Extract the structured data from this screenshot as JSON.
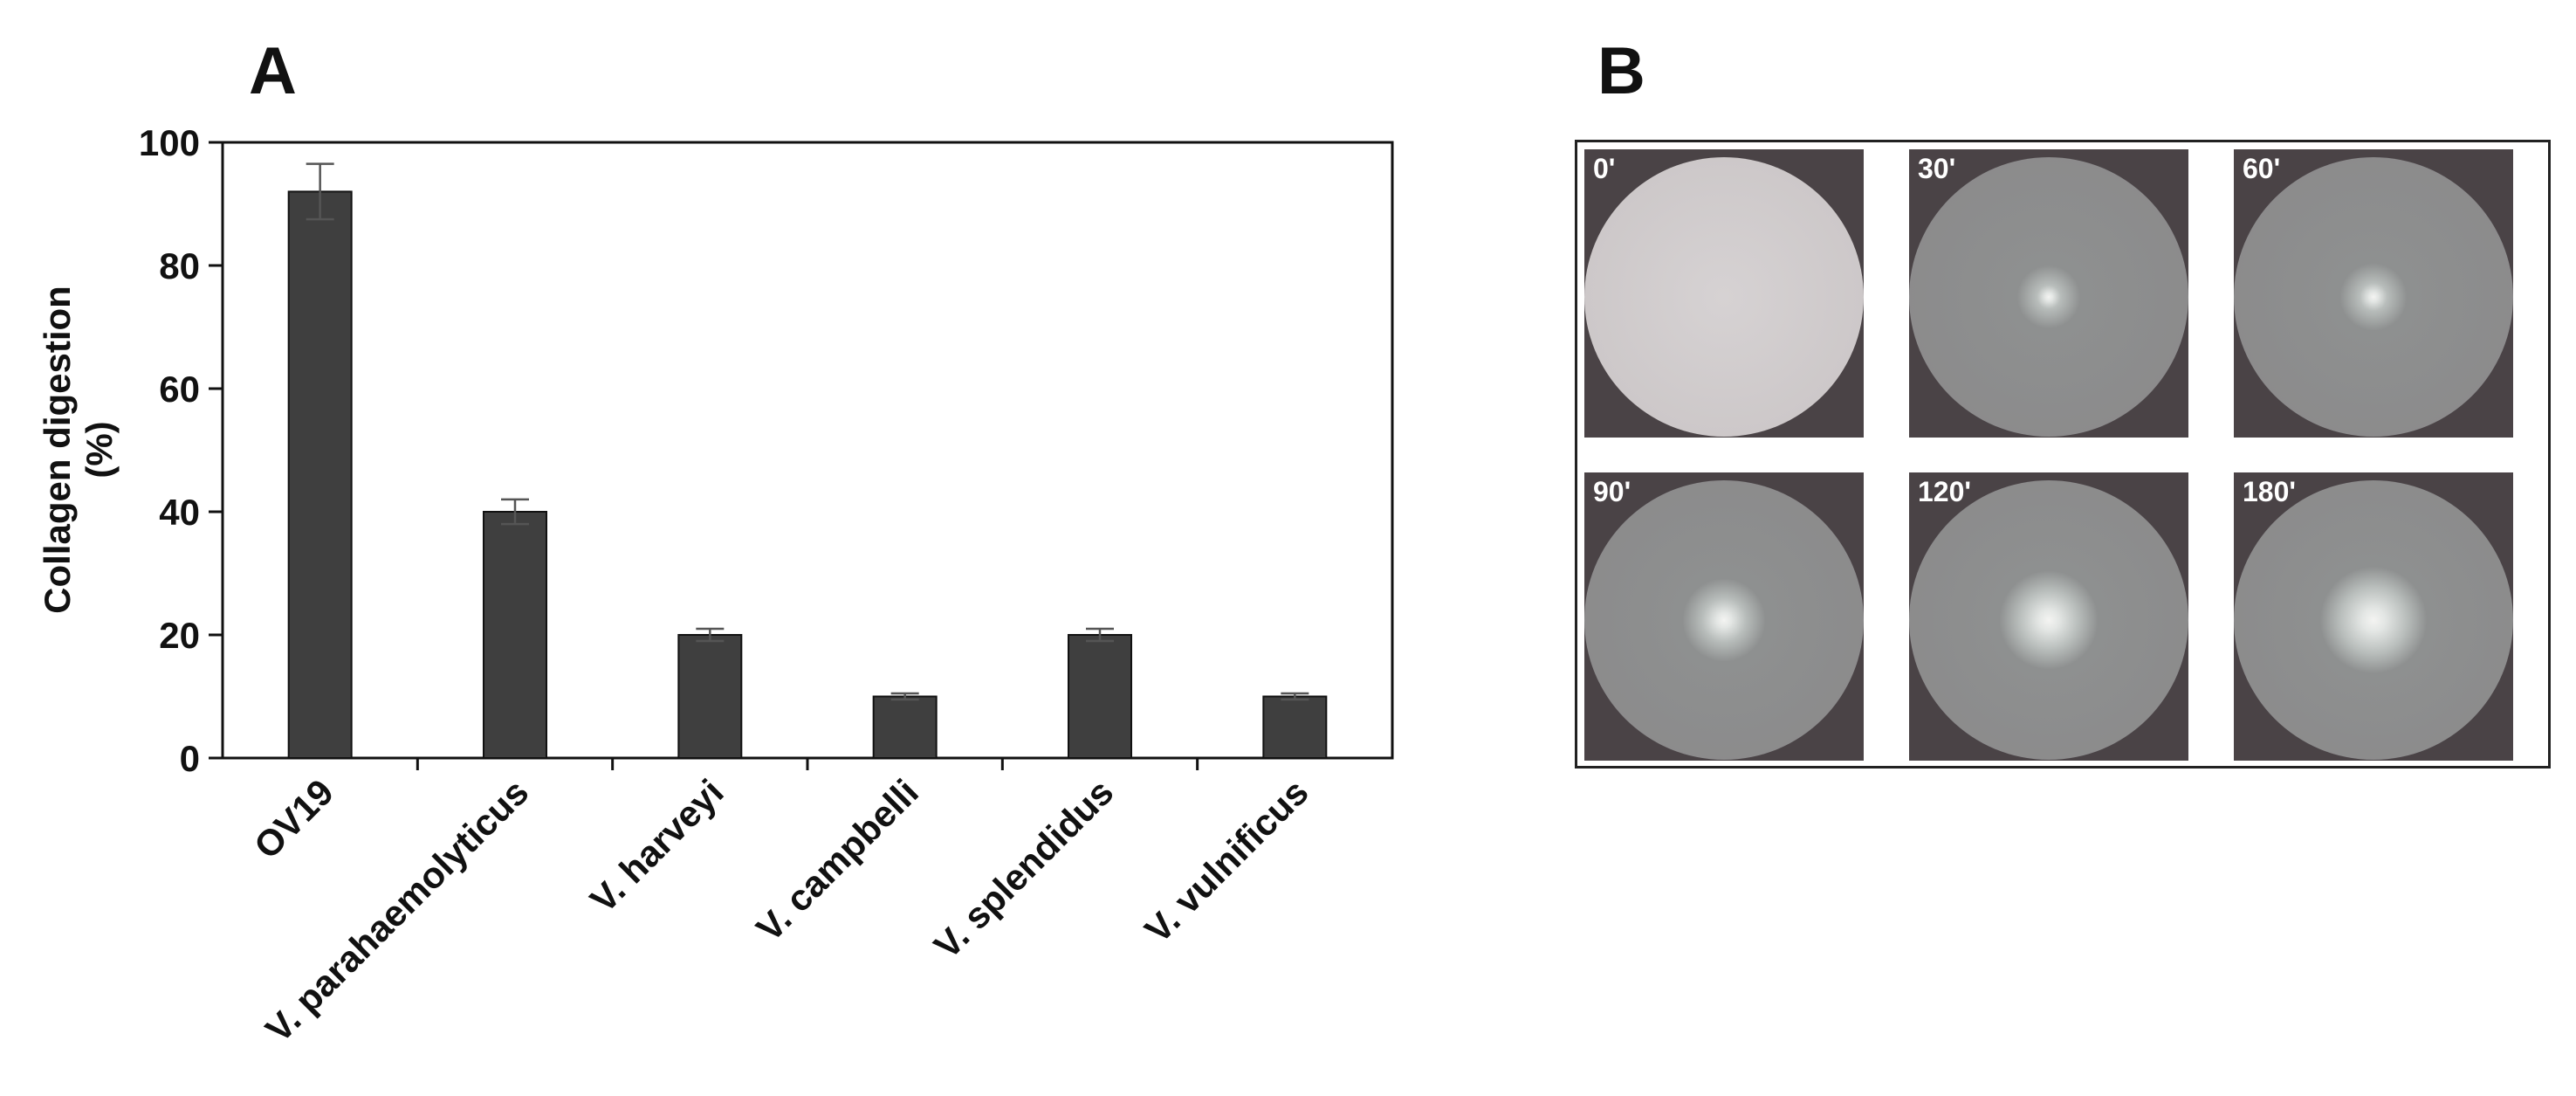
{
  "panels": {
    "a_label": "A",
    "b_label": "B"
  },
  "chart_data": {
    "type": "bar",
    "categories": [
      "OV19",
      "V. parahaemolyticus",
      "V. harveyi",
      "V. campbelli",
      "V. splendidus",
      "V. vulnificus"
    ],
    "values": [
      92,
      40,
      20,
      10,
      20,
      10
    ],
    "errors": [
      4.5,
      2,
      1,
      0.5,
      1,
      0.5
    ],
    "ylabel_line1": "Collagen digestion",
    "ylabel_line2": "(%)",
    "ylim": [
      0,
      100
    ],
    "yticks": [
      0,
      20,
      40,
      60,
      80,
      100
    ],
    "grid": false,
    "bar_color": "#3f3f3f"
  },
  "plates": [
    {
      "label": "0'",
      "halo": 0
    },
    {
      "label": "30'",
      "halo": 0.2
    },
    {
      "label": "60'",
      "halo": 0.25
    },
    {
      "label": "90'",
      "halo": 0.4
    },
    {
      "label": "120'",
      "halo": 0.55
    },
    {
      "label": "180'",
      "halo": 0.6
    }
  ]
}
